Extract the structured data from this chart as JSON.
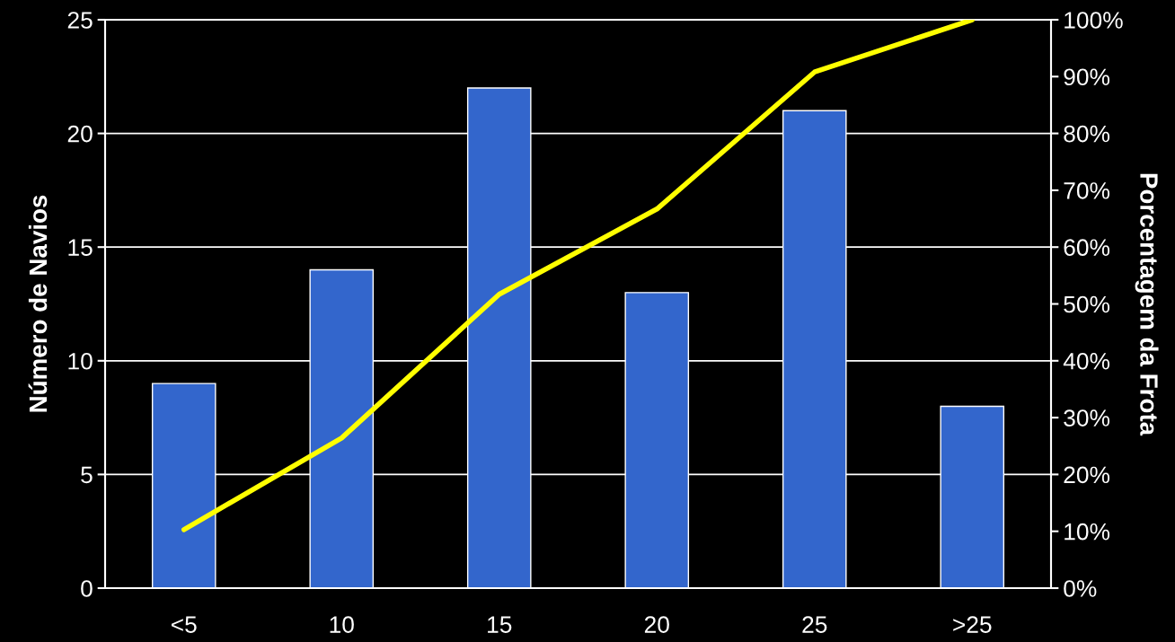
{
  "chart_data": {
    "type": "bar",
    "categories": [
      "<5",
      "10",
      "15",
      "20",
      "25",
      ">25"
    ],
    "series": [
      {
        "color": "#3366cc",
        "values": [
          9,
          14,
          22,
          13,
          21,
          8
        ]
      },
      {
        "type": "line",
        "axis": "y2",
        "color": "#ffff00",
        "values": [
          10.3,
          26.4,
          51.7,
          66.7,
          90.8,
          100
        ]
      }
    ],
    "ylabel": "Número de Navios",
    "y2label": "Porcentagem da Frota",
    "ylim": [
      0,
      25
    ],
    "yticks": [
      0,
      5,
      10,
      15,
      20,
      25
    ],
    "y2lim": [
      0,
      100
    ],
    "y2ticks": [
      {
        "value": 0,
        "label": "0%"
      },
      {
        "value": 10,
        "label": "10%"
      },
      {
        "value": 20,
        "label": "20%"
      },
      {
        "value": 30,
        "label": "30%"
      },
      {
        "value": 40,
        "label": "40%"
      },
      {
        "value": 50,
        "label": "50%"
      },
      {
        "value": 60,
        "label": "60%"
      },
      {
        "value": 70,
        "label": "70%"
      },
      {
        "value": 80,
        "label": "80%"
      },
      {
        "value": 90,
        "label": "90%"
      },
      {
        "value": 100,
        "label": "100%"
      }
    ],
    "grid": "y",
    "line_style": "solid",
    "marker": "none"
  }
}
